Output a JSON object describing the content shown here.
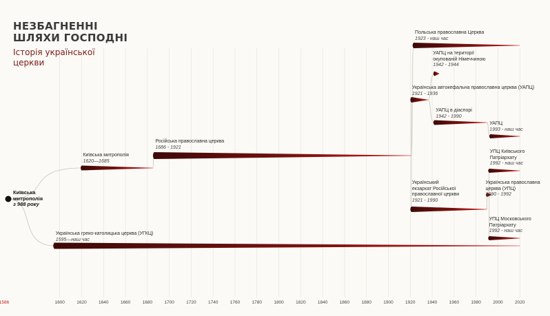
{
  "title": {
    "lines": [
      "НЕЗБАГНЕННІ",
      "ШЛЯХИ ГОСПОДНІ"
    ]
  },
  "subtitle": {
    "lines": [
      "Історія української",
      "церкви"
    ]
  },
  "root": {
    "lines": [
      "Київська",
      "митрополія"
    ],
    "date": "з 988 року",
    "start": 1553
  },
  "axis": {
    "min": 1553,
    "max": 2040,
    "tick_labels": [
      "1600",
      "1620",
      "1640",
      "1660",
      "1680",
      "1700",
      "1720",
      "1740",
      "1760",
      "1780",
      "1800",
      "1820",
      "1840",
      "1860",
      "1880",
      "1900",
      "1920",
      "1940",
      "1960",
      "1980",
      "2000",
      "2020"
    ],
    "first_label_partial": "1586"
  },
  "colors": {
    "branch_dark": "#3d0908",
    "branch_bright": "#cc1a1a",
    "root_dot": "#111111",
    "grid": "#e4e1d8",
    "connector": "#c9c4b8"
  },
  "chart_data": {
    "type": "timeline",
    "axis_range": [
      1553,
      2040
    ],
    "items": [
      {
        "id": "kyiv-metropolis",
        "lines": [
          "Київська митрополія"
        ],
        "date": "1620—1685",
        "start": 1620,
        "end": 1685
      },
      {
        "id": "russian-church",
        "lines": [
          "Російська православна церква"
        ],
        "date": "1686 - 1921",
        "start": 1686,
        "end": 1921
      },
      {
        "id": "ugcc",
        "lines": [
          "Українська греко-католицька церква (УГКЦ)"
        ],
        "date": "1595—наш час",
        "start": 1595,
        "end": 2020
      },
      {
        "id": "polish-church",
        "lines": [
          "Польська православна Церква"
        ],
        "date": "1923 - наш час",
        "start": 1923,
        "end": 2020
      },
      {
        "id": "uaoc-occupied",
        "lines": [
          "УАПЦ на території",
          "окупованій Німеччиною"
        ],
        "date": "1942 - 1944",
        "start": 1942,
        "end": 1944
      },
      {
        "id": "uaoc-1921",
        "lines": [
          "Українська автокефальна православна церква (УАПЦ)"
        ],
        "date": "1921 - 1936",
        "start": 1921,
        "end": 1936
      },
      {
        "id": "uaoc-diaspora",
        "lines": [
          "УАПЦ в діаспорі"
        ],
        "date": "1942 - 1990",
        "start": 1942,
        "end": 1990
      },
      {
        "id": "uaoc-1993",
        "lines": [
          "УАПЦ"
        ],
        "date": "1993 - наш час",
        "start": 1993,
        "end": 2020
      },
      {
        "id": "uoc-kp",
        "lines": [
          "УПЦ Київського",
          "Патріархату"
        ],
        "date": "1992 - наш час",
        "start": 1992,
        "end": 2020
      },
      {
        "id": "ukr-exarchate",
        "lines": [
          "Український",
          "екзархат Російської",
          "православної церкви"
        ],
        "date": "1921 - 1990",
        "start": 1921,
        "end": 1990
      },
      {
        "id": "uoc-1990",
        "lines": [
          "Українська православна",
          "церква (УПЦ)"
        ],
        "date": "1990 - 1992",
        "start": 1990,
        "end": 1992
      },
      {
        "id": "uoc-mp",
        "lines": [
          "УПЦ Московського",
          "Патріархату"
        ],
        "date": "1992 - наш час",
        "start": 1992,
        "end": 2020
      }
    ]
  }
}
